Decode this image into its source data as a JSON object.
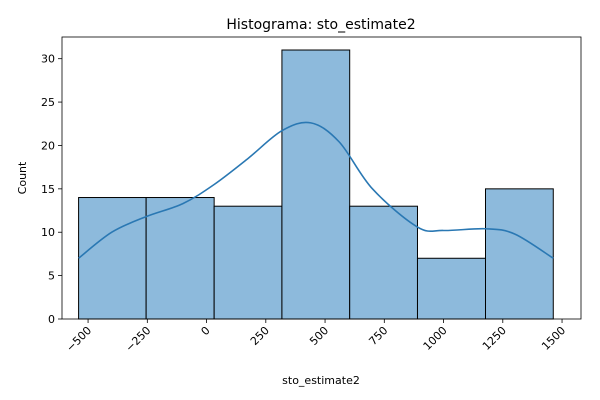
{
  "chart_data": {
    "type": "bar",
    "title": "Histograma: sto_estimate2",
    "xlabel": "sto_estimate2",
    "ylabel": "Count",
    "xlim": [
      -610,
      1580
    ],
    "ylim": [
      0,
      32.5
    ],
    "xticks": [
      -500,
      -250,
      0,
      250,
      500,
      750,
      1000,
      1250,
      1500
    ],
    "xtick_labels": [
      "−500",
      "−250",
      "0",
      "250",
      "500",
      "750",
      "1000",
      "1250",
      "1500"
    ],
    "yticks": [
      0,
      5,
      10,
      15,
      20,
      25,
      30
    ],
    "ytick_labels": [
      "0",
      "5",
      "10",
      "15",
      "20",
      "25",
      "30"
    ],
    "bins": [
      {
        "x0": -540,
        "x1": -255,
        "count": 14
      },
      {
        "x0": -255,
        "x1": 32,
        "count": 14
      },
      {
        "x0": 32,
        "x1": 318,
        "count": 13
      },
      {
        "x0": 318,
        "x1": 604,
        "count": 31
      },
      {
        "x0": 604,
        "x1": 890,
        "count": 13
      },
      {
        "x0": 890,
        "x1": 1177,
        "count": 7
      },
      {
        "x0": 1177,
        "x1": 1463,
        "count": 15
      }
    ],
    "kde": {
      "x": [
        -540,
        -400,
        -255,
        -100,
        32,
        175,
        318,
        440,
        560,
        700,
        890,
        1000,
        1177,
        1300,
        1463
      ],
      "y": [
        7.0,
        10.0,
        11.8,
        13.3,
        15.5,
        18.5,
        21.7,
        22.6,
        20.4,
        15.0,
        10.6,
        10.2,
        10.4,
        9.8,
        7.0
      ]
    },
    "bar_fill": "#8dbadc",
    "bar_edge": "#000000",
    "kde_color": "#2a78b3",
    "grid": false,
    "xtick_rotation": 45
  }
}
